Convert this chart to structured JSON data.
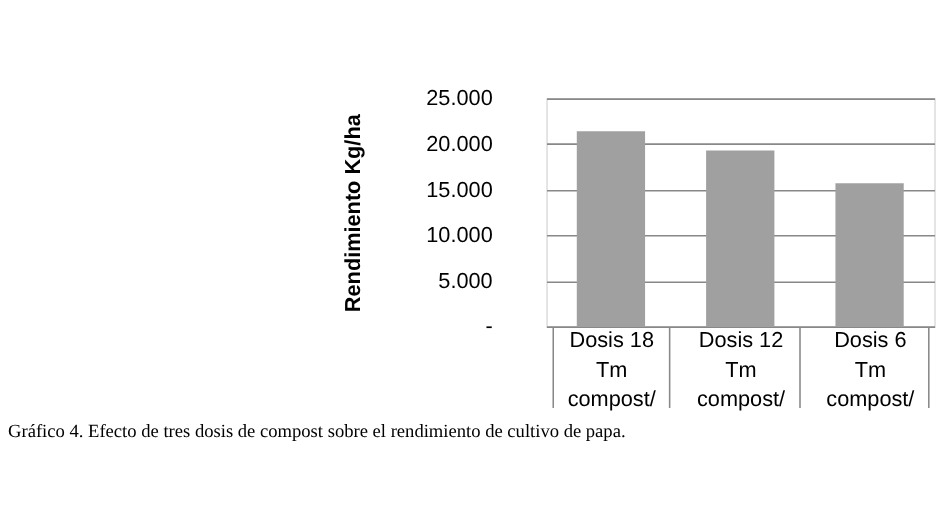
{
  "chart_data": {
    "type": "bar",
    "ylabel": "Rendimiento Kg/ha",
    "categories": [
      "Dosis 18 Tm compost/",
      "Dosis 12 Tm compost/",
      "Dosis 6 Tm compost/"
    ],
    "values": [
      21400,
      19300,
      15700
    ],
    "color": "#a0a0a0",
    "ylim": [
      0,
      25000
    ],
    "yticks": [
      {
        "value": 0,
        "label": "-"
      },
      {
        "value": 5000,
        "label": "5.000"
      },
      {
        "value": 10000,
        "label": "10.000"
      },
      {
        "value": 15000,
        "label": "15.000"
      },
      {
        "value": 20000,
        "label": "20.000"
      },
      {
        "value": 25000,
        "label": "25.000"
      }
    ],
    "grid": "y",
    "annotations": [
      "Gráfico 4. Efecto de tres dosis de compost sobre el rendimiento de cultivo de papa."
    ]
  }
}
